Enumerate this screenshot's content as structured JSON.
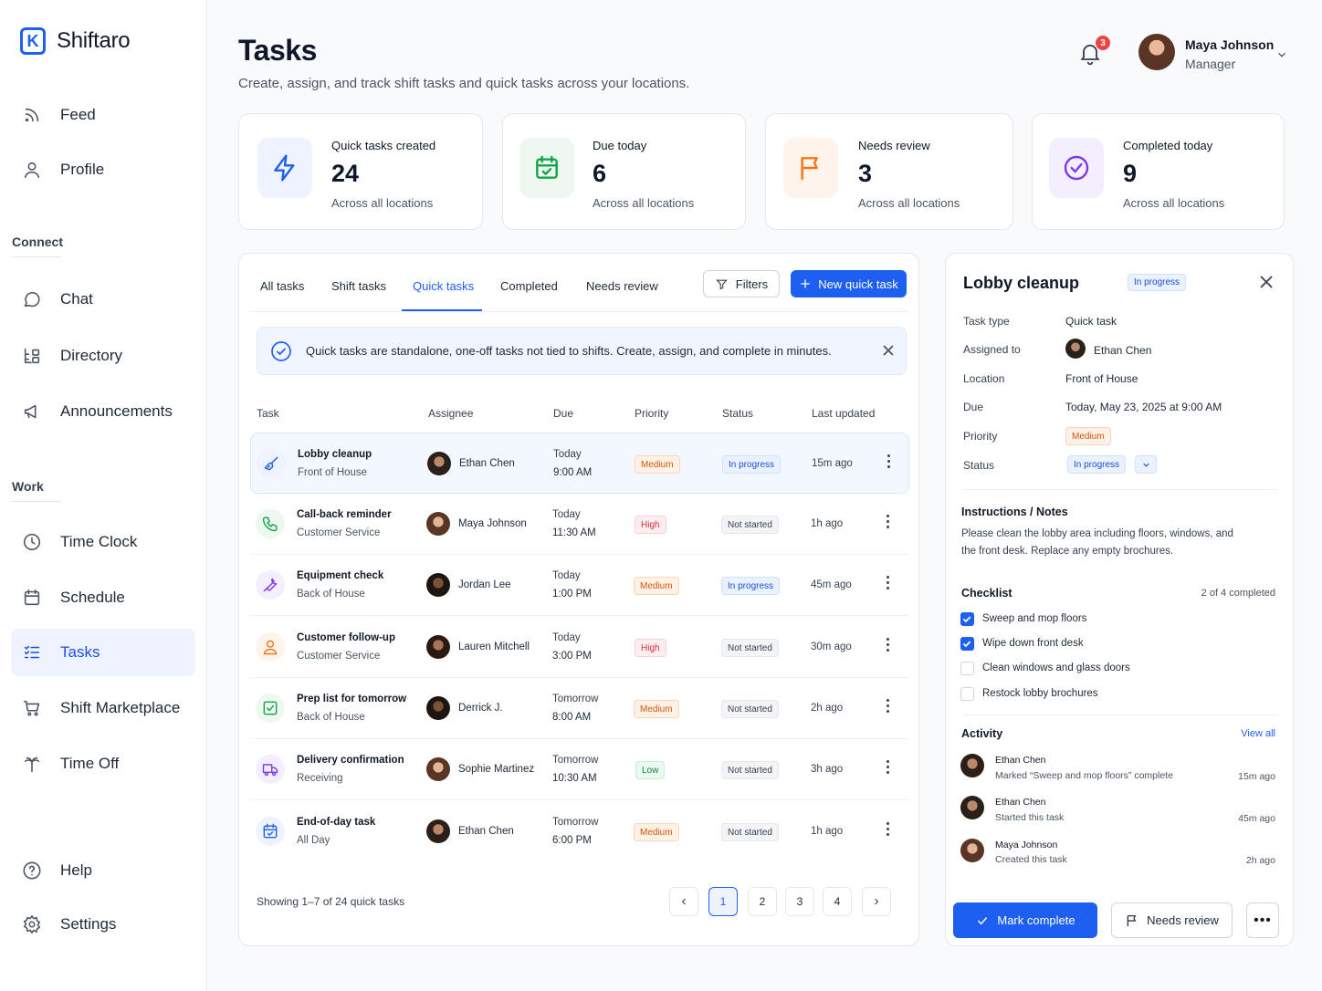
{
  "app": {
    "name": "Shiftaro"
  },
  "sidebar": {
    "top": [
      {
        "label": "Feed",
        "icon": "rss-icon"
      },
      {
        "label": "Profile",
        "icon": "user-icon"
      }
    ],
    "connect_label": "Connect",
    "connect": [
      {
        "label": "Chat",
        "icon": "chat-bubble-icon"
      },
      {
        "label": "Directory",
        "icon": "directory-icon"
      },
      {
        "label": "Announcements",
        "icon": "megaphone-icon"
      }
    ],
    "work_label": "Work",
    "work": [
      {
        "label": "Time Clock",
        "icon": "clock-icon"
      },
      {
        "label": "Schedule",
        "icon": "calendar-icon"
      },
      {
        "label": "Tasks",
        "icon": "list-check-icon",
        "active": true
      },
      {
        "label": "Shift Marketplace",
        "icon": "cart-icon"
      },
      {
        "label": "Time Off",
        "icon": "palm-tree-icon"
      }
    ],
    "bottom": [
      {
        "label": "Help",
        "icon": "help-circle-icon"
      },
      {
        "label": "Settings",
        "icon": "gear-icon"
      }
    ]
  },
  "header": {
    "title": "Tasks",
    "subtitle": "Create, assign, and track shift tasks and quick tasks across your locations.",
    "notifications": "3",
    "user": {
      "name": "Maya Johnson",
      "role": "Manager"
    }
  },
  "stats": [
    {
      "label": "Quick tasks created",
      "value": "24",
      "sub": "Across all locations",
      "icon": "lightning-icon",
      "color": "#1d5ff0"
    },
    {
      "label": "Due today",
      "value": "6",
      "sub": "Across all locations",
      "icon": "calendar-check-icon",
      "color": "#16a34a"
    },
    {
      "label": "Needs review",
      "value": "3",
      "sub": "Across all locations",
      "icon": "flag-icon",
      "color": "#f97316"
    },
    {
      "label": "Completed today",
      "value": "9",
      "sub": "Across all locations",
      "icon": "check-circle-icon",
      "color": "#7c3aed"
    }
  ],
  "tabs": [
    "All tasks",
    "Shift tasks",
    "Quick tasks",
    "Completed",
    "Needs review"
  ],
  "actions": {
    "filters": "Filters",
    "new_task": "New quick task"
  },
  "banner": "Quick tasks are standalone, one-off tasks not tied to shifts. Create, assign, and complete in minutes.",
  "table": {
    "headers": [
      "Task",
      "Assignee",
      "Due",
      "Priority",
      "Status",
      "Last updated"
    ],
    "rows": [
      {
        "name": "Lobby cleanup",
        "location": "Front of House",
        "assignee": "Ethan Chen",
        "due_day": "Today",
        "due_time": "9:00 AM",
        "priority": "Medium",
        "status": "In progress",
        "updated": "15m ago",
        "icon": "broom-icon"
      },
      {
        "name": "Call-back reminder",
        "location": "Customer Service",
        "assignee": "Maya Johnson",
        "due_day": "Today",
        "due_time": "11:30 AM",
        "priority": "High",
        "status": "Not started",
        "updated": "1h ago",
        "icon": "phone-icon"
      },
      {
        "name": "Equipment check",
        "location": "Back of House",
        "assignee": "Jordan Lee",
        "due_day": "Today",
        "due_time": "1:00 PM",
        "priority": "Medium",
        "status": "In progress",
        "updated": "45m ago",
        "icon": "wrench-icon"
      },
      {
        "name": "Customer follow-up",
        "location": "Customer Service",
        "assignee": "Lauren Mitchell",
        "due_day": "Today",
        "due_time": "3:00 PM",
        "priority": "High",
        "status": "Not started",
        "updated": "30m ago",
        "icon": "person-icon"
      },
      {
        "name": "Prep list for tomorrow",
        "location": "Back of House",
        "assignee": "Derrick J.",
        "due_day": "Tomorrow",
        "due_time": "8:00 AM",
        "priority": "Medium",
        "status": "Not started",
        "updated": "2h ago",
        "icon": "checkbox-icon"
      },
      {
        "name": "Delivery confirmation",
        "location": "Receiving",
        "assignee": "Sophie Martinez",
        "due_day": "Tomorrow",
        "due_time": "10:30 AM",
        "priority": "Low",
        "status": "Not started",
        "updated": "3h ago",
        "icon": "truck-icon"
      },
      {
        "name": "End-of-day task",
        "location": "All Day",
        "assignee": "Ethan Chen",
        "due_day": "Tomorrow",
        "due_time": "6:00 PM",
        "priority": "Medium",
        "status": "Not started",
        "updated": "1h ago",
        "icon": "calendar-check-icon"
      }
    ]
  },
  "pagination": {
    "showing": "Showing 1–7 of 24 quick tasks",
    "pages": [
      "1",
      "2",
      "3",
      "4"
    ],
    "current": "1"
  },
  "detail": {
    "title": "Lobby cleanup",
    "status_badge": "In progress",
    "fields": {
      "task_type_label": "Task type",
      "task_type": "Quick task",
      "assigned_label": "Assigned to",
      "assigned": "Ethan Chen",
      "location_label": "Location",
      "location": "Front of House",
      "due_label": "Due",
      "due": "Today, May 23, 2025 at 9:00 AM",
      "priority_label": "Priority",
      "priority": "Medium",
      "status_label": "Status",
      "status": "In progress"
    },
    "notes_heading": "Instructions / Notes",
    "notes": "Please clean the lobby area including floors, windows, and the front desk. Replace any empty brochures.",
    "checklist_heading": "Checklist",
    "checklist_progress": "2 of 4 completed",
    "checklist": [
      {
        "label": "Sweep and mop floors",
        "done": true
      },
      {
        "label": "Wipe down front desk",
        "done": true
      },
      {
        "label": "Clean windows and glass doors",
        "done": false
      },
      {
        "label": "Restock lobby brochures",
        "done": false
      }
    ],
    "activity_heading": "Activity",
    "view_all": "View all",
    "activity": [
      {
        "name": "Ethan Chen",
        "desc": "Marked “Sweep and mop floors” complete",
        "time": "15m ago"
      },
      {
        "name": "Ethan Chen",
        "desc": "Started this task",
        "time": "45m ago"
      },
      {
        "name": "Maya Johnson",
        "desc": "Created this task",
        "time": "2h ago"
      }
    ],
    "btn_complete": "Mark complete",
    "btn_review": "Needs review",
    "btn_more": "•••"
  }
}
